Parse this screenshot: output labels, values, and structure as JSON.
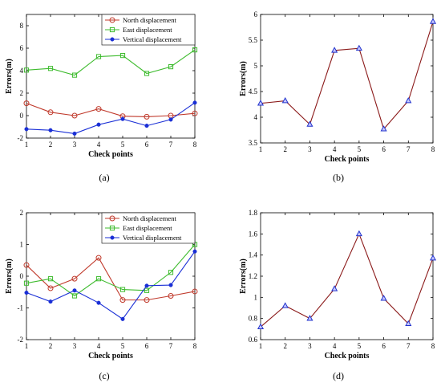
{
  "chart_data": [
    {
      "type": "line",
      "panel_label": "(a)",
      "xlabel": "Check points",
      "ylabel": "Errors(m)",
      "x": [
        1,
        2,
        3,
        4,
        5,
        6,
        7,
        8
      ],
      "xticks": [
        "1",
        "2",
        "3",
        "4",
        "5",
        "6",
        "7",
        "8"
      ],
      "ylim": [
        -2,
        9
      ],
      "yticks": [
        -2,
        0,
        2,
        4,
        6,
        8
      ],
      "ytick_labels": [
        "-2",
        "0",
        "2",
        "4",
        "6",
        "8"
      ],
      "legend_position": "top-right",
      "series": [
        {
          "name": "North displacement",
          "color": "#c0392b",
          "marker": "circle",
          "values": [
            1.1,
            0.3,
            0.0,
            0.6,
            -0.05,
            -0.1,
            0.0,
            0.2
          ]
        },
        {
          "name": "East displacement",
          "color": "#3dbb2d",
          "marker": "square",
          "values": [
            4.05,
            4.2,
            3.6,
            5.25,
            5.35,
            3.75,
            4.35,
            5.85
          ]
        },
        {
          "name": "Vertical displacement",
          "color": "#1a2fd6",
          "marker": "dot",
          "values": [
            -1.2,
            -1.3,
            -1.6,
            -0.8,
            -0.3,
            -0.9,
            -0.35,
            1.15
          ]
        }
      ]
    },
    {
      "type": "line",
      "panel_label": "(b)",
      "xlabel": "Check points",
      "ylabel": "Errors(m)",
      "x": [
        1,
        2,
        3,
        4,
        5,
        6,
        7,
        8
      ],
      "xticks": [
        "1",
        "2",
        "3",
        "4",
        "5",
        "6",
        "7",
        "8"
      ],
      "ylim": [
        3.5,
        6
      ],
      "yticks": [
        3.5,
        4,
        4.5,
        5,
        5.5,
        6
      ],
      "ytick_labels": [
        "3.5",
        "4",
        "4.5",
        "5",
        "5.5",
        "6"
      ],
      "series": [
        {
          "color": "#8b1a1a",
          "marker": "triangle",
          "marker_color": "#2233cc",
          "values": [
            4.27,
            4.32,
            3.86,
            5.3,
            5.34,
            3.77,
            4.32,
            5.86
          ]
        }
      ]
    },
    {
      "type": "line",
      "panel_label": "(c)",
      "xlabel": "Check points",
      "ylabel": "Errors(m)",
      "x": [
        1,
        2,
        3,
        4,
        5,
        6,
        7,
        8
      ],
      "xticks": [
        "1",
        "2",
        "3",
        "4",
        "5",
        "6",
        "7",
        "8"
      ],
      "ylim": [
        -2,
        2
      ],
      "yticks": [
        -2,
        -1,
        0,
        1,
        2
      ],
      "ytick_labels": [
        "-2",
        "-1",
        "0",
        "1",
        "2"
      ],
      "legend_position": "top-right",
      "series": [
        {
          "name": "North displacement",
          "color": "#c0392b",
          "marker": "circle",
          "values": [
            0.35,
            -0.38,
            -0.08,
            0.58,
            -0.75,
            -0.75,
            -0.62,
            -0.48
          ]
        },
        {
          "name": "East displacement",
          "color": "#3dbb2d",
          "marker": "square",
          "values": [
            -0.22,
            -0.08,
            -0.62,
            -0.08,
            -0.42,
            -0.45,
            0.12,
            1.0
          ]
        },
        {
          "name": "Vertical displacement",
          "color": "#1a2fd6",
          "marker": "dot",
          "values": [
            -0.52,
            -0.8,
            -0.45,
            -0.84,
            -1.35,
            -0.3,
            -0.28,
            0.78
          ]
        }
      ]
    },
    {
      "type": "line",
      "panel_label": "(d)",
      "xlabel": "Check points",
      "ylabel": "Errors(m)",
      "x": [
        1,
        2,
        3,
        4,
        5,
        6,
        7,
        8
      ],
      "xticks": [
        "1",
        "2",
        "3",
        "4",
        "5",
        "6",
        "7",
        "8"
      ],
      "ylim": [
        0.6,
        1.8
      ],
      "yticks": [
        0.6,
        0.8,
        1,
        1.2,
        1.4,
        1.6,
        1.8
      ],
      "ytick_labels": [
        "0.6",
        "0.8",
        "1",
        "1.2",
        "1.4",
        "1.6",
        "1.8"
      ],
      "series": [
        {
          "color": "#8b1a1a",
          "marker": "triangle",
          "marker_color": "#2233cc",
          "values": [
            0.72,
            0.92,
            0.8,
            1.08,
            1.6,
            0.99,
            0.75,
            1.37
          ]
        }
      ]
    }
  ]
}
